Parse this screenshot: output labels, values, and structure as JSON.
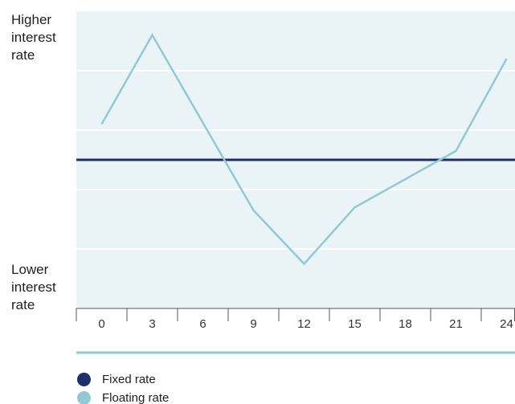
{
  "chart_data": {
    "type": "line",
    "title": "",
    "xlabel": "",
    "y_label_top": "Higher\ninterest\nrate",
    "y_label_bottom": "Lower\ninterest\nrate",
    "x": [
      0,
      3,
      6,
      9,
      12,
      15,
      18,
      21,
      24
    ],
    "x_tick_labels": [
      "0",
      "3",
      "6",
      "9",
      "12",
      "15",
      "18",
      "21",
      "24"
    ],
    "xlim": [
      -1.5,
      24.5
    ],
    "ylim": [
      0,
      100
    ],
    "y_ticks_unlabeled": [
      20,
      40,
      60,
      80
    ],
    "grid": true,
    "legend_position": "bottom-left",
    "series": [
      {
        "name": "Fixed rate",
        "color": "#1b2f6b",
        "x": [
          -1.5,
          24.5
        ],
        "values": [
          50,
          50
        ]
      },
      {
        "name": "Floating rate",
        "color": "#92c9d3",
        "x": [
          0,
          3,
          9,
          12,
          15,
          21,
          24
        ],
        "values": [
          62,
          92,
          33,
          15,
          34,
          53,
          84
        ]
      }
    ],
    "colors": {
      "plot_background": "#eaf3f5",
      "gridline": "#ffffff",
      "axis": "#555555",
      "footer_rule": "#92c9d3"
    }
  }
}
